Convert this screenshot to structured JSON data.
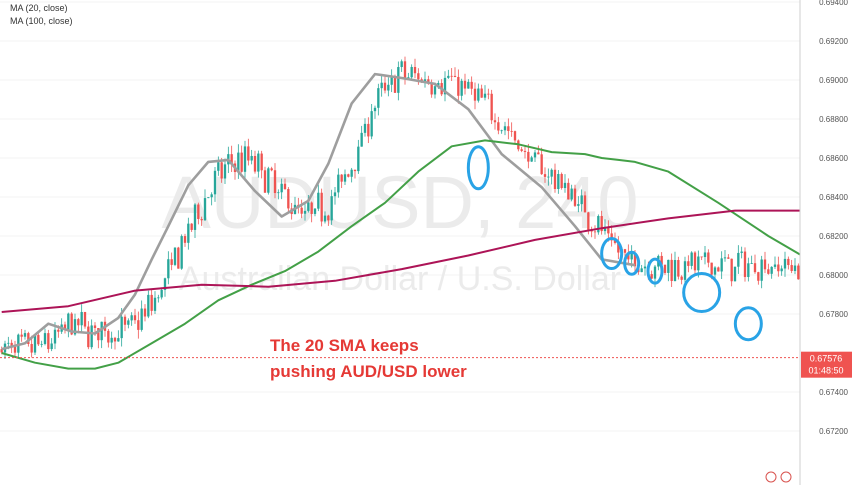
{
  "indicators": [
    "MA (20, close)",
    "MA (100, close)"
  ],
  "watermark": {
    "symbol": "AUDUSD, 240",
    "description": "Australian Dollar / U.S. Dollar"
  },
  "annotation": {
    "line1": "The 20 SMA keeps",
    "line2": "pushing AUD/USD lower"
  },
  "price_tag": {
    "price": "0.67576",
    "countdown": "01:48:50"
  },
  "colors": {
    "up": "#26a69a",
    "down": "#ef5350",
    "sma20": "#9e9e9e",
    "sma100": "#43a047",
    "sma200": "#ad1457",
    "circle": "#29a3e6",
    "tag": "#ef5350",
    "annotation": "#e53935"
  },
  "chart_data": {
    "type": "line",
    "title": "",
    "y_axis": {
      "min": 0.6715,
      "max": 0.694,
      "tick_labels": [
        "0.69400",
        "0.69200",
        "0.69000",
        "0.68800",
        "0.68600",
        "0.68400",
        "0.68200",
        "0.68000",
        "0.67800",
        "0.67400",
        "0.67200"
      ]
    },
    "current_price": 0.67576,
    "series": [
      {
        "name": "MA (20, close)",
        "x": [
          0,
          7,
          14,
          21,
          28,
          35,
          40,
          45,
          50,
          56,
          62,
          68,
          76,
          84,
          92,
          98,
          105,
          112,
          120,
          130,
          140,
          150,
          162,
          172,
          180,
          190
        ],
        "values": [
          0.6762,
          0.6765,
          0.6775,
          0.6771,
          0.677,
          0.6778,
          0.679,
          0.6808,
          0.6825,
          0.6846,
          0.6858,
          0.6859,
          0.6843,
          0.683,
          0.6838,
          0.6857,
          0.6888,
          0.6903,
          0.6901,
          0.6898,
          0.6885,
          0.6862,
          0.6845,
          0.6825,
          0.6808,
          0.6805
        ]
      },
      {
        "name": "MA (100, close)",
        "x": [
          0,
          10,
          20,
          28,
          35,
          45,
          55,
          65,
          75,
          85,
          95,
          105,
          115,
          125,
          135,
          145,
          155,
          165,
          175,
          180,
          185,
          190,
          200,
          215,
          230,
          240
        ],
        "values": [
          0.676,
          0.6755,
          0.6752,
          0.6752,
          0.6755,
          0.6765,
          0.6775,
          0.6787,
          0.6795,
          0.6802,
          0.6812,
          0.6825,
          0.6837,
          0.6853,
          0.6866,
          0.6869,
          0.6867,
          0.6863,
          0.6862,
          0.686,
          0.6859,
          0.6858,
          0.6853,
          0.6837,
          0.682,
          0.681
        ]
      },
      {
        "name": "",
        "x": [
          0,
          20,
          40,
          60,
          80,
          100,
          120,
          140,
          160,
          180,
          200,
          220,
          240
        ],
        "values": [
          0.6781,
          0.6784,
          0.6792,
          0.6795,
          0.6794,
          0.6797,
          0.6803,
          0.681,
          0.6818,
          0.6824,
          0.6829,
          0.6833,
          0.6833
        ]
      }
    ]
  }
}
